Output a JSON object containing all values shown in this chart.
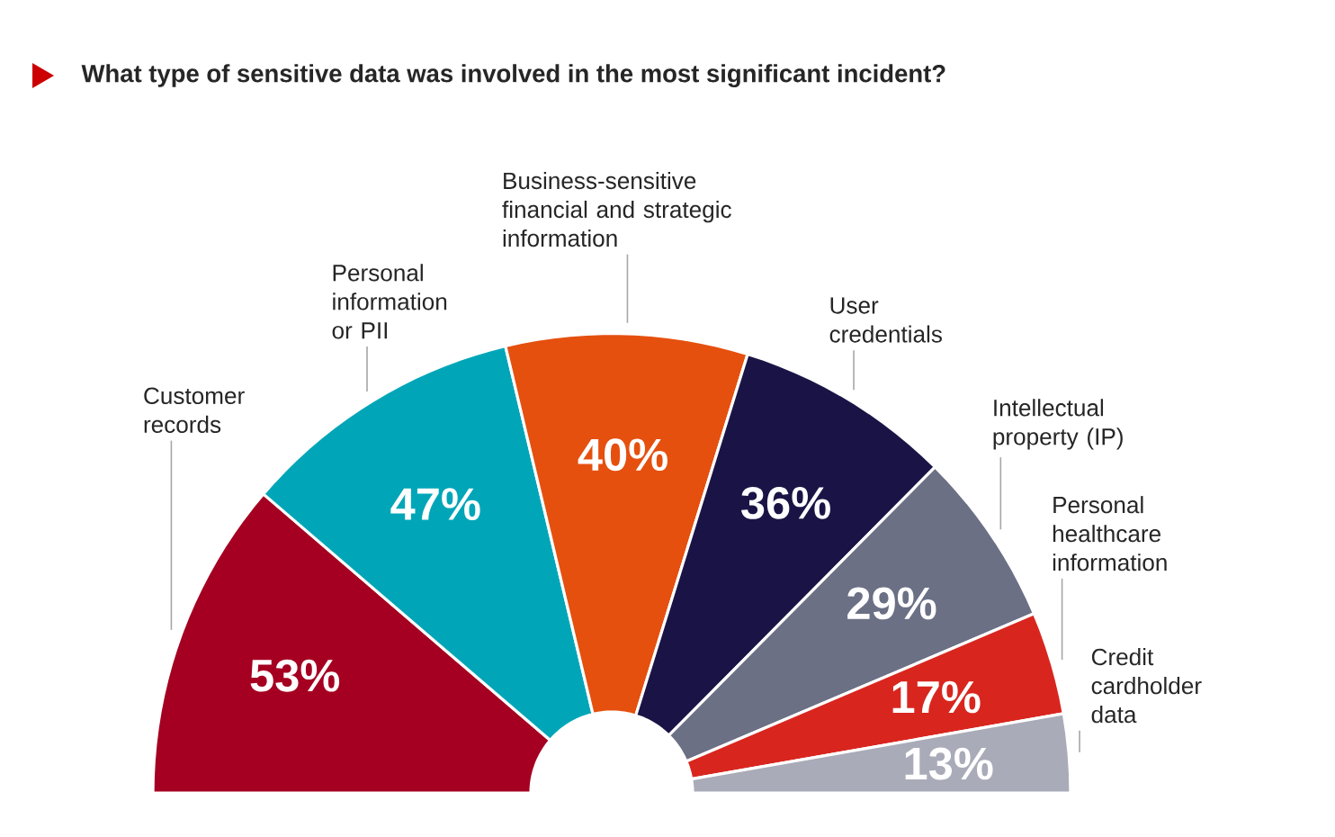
{
  "chart_data": {
    "type": "donut",
    "title": "What type of sensitive data was involved in the most significant incident?",
    "categories": [
      "Customer records",
      "Personal information or PII",
      "Business-sensitive financial and strategic information",
      "User credentials",
      "Intellectual property (IP)",
      "Personal healthcare information",
      "Credit cardholder data"
    ],
    "values": [
      53,
      47,
      40,
      36,
      29,
      17,
      13
    ],
    "value_labels": [
      "53%",
      "47%",
      "40%",
      "36%",
      "29%",
      "17%",
      "13%"
    ],
    "colors": [
      "#a50021",
      "#00a6b8",
      "#e5500f",
      "#1a1446",
      "#6b7085",
      "#d8261f",
      "#a9abb8"
    ]
  }
}
